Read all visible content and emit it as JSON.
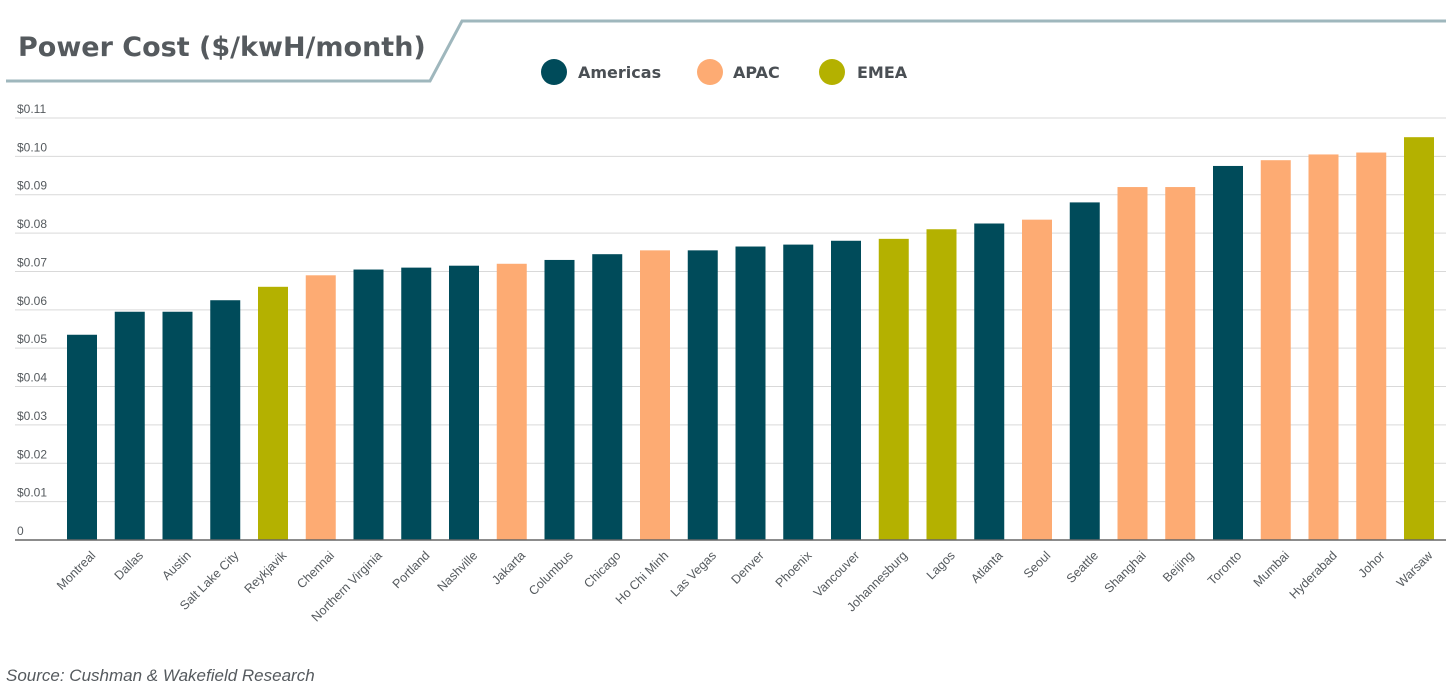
{
  "chart_data": {
    "type": "bar",
    "title": "Power Cost ($/kwH/month)",
    "xlabel": "",
    "ylabel": "",
    "ylim": [
      0,
      0.11
    ],
    "yticks": [
      0,
      0.01,
      0.02,
      0.03,
      0.04,
      0.05,
      0.06,
      0.07,
      0.08,
      0.09,
      0.1,
      0.11
    ],
    "ytick_labels": [
      "0",
      "$0.01",
      "$0.02",
      "$0.03",
      "$0.04",
      "$0.05",
      "$0.06",
      "$0.07",
      "$0.08",
      "$0.09",
      "$0.10",
      "$0.11"
    ],
    "legend": {
      "position": "top",
      "entries": [
        {
          "name": "Americas",
          "color": "#004b5a"
        },
        {
          "name": "APAC",
          "color": "#fdab73"
        },
        {
          "name": "EMEA",
          "color": "#b4b100"
        }
      ]
    },
    "categories": [
      "Montreal",
      "Dallas",
      "Austin",
      "Salt Lake City",
      "Reykjavik",
      "Chennai",
      "Northern Virginia",
      "Portland",
      "Nashville",
      "Jakarta",
      "Columbus",
      "Chicago",
      "Ho Chi Minh",
      "Las Vegas",
      "Denver",
      "Phoenix",
      "Vancouver",
      "Johannesburg",
      "Lagos",
      "Atlanta",
      "Seoul",
      "Seattle",
      "Shanghai",
      "Beijing",
      "Toronto",
      "Mumbai",
      "Hyderabad",
      "Johor",
      "Warsaw"
    ],
    "regions": [
      "Americas",
      "Americas",
      "Americas",
      "Americas",
      "EMEA",
      "APAC",
      "Americas",
      "Americas",
      "Americas",
      "APAC",
      "Americas",
      "Americas",
      "APAC",
      "Americas",
      "Americas",
      "Americas",
      "Americas",
      "EMEA",
      "EMEA",
      "Americas",
      "APAC",
      "Americas",
      "APAC",
      "APAC",
      "Americas",
      "APAC",
      "APAC",
      "APAC",
      "EMEA"
    ],
    "values": [
      0.0535,
      0.0595,
      0.0595,
      0.0625,
      0.066,
      0.069,
      0.0705,
      0.071,
      0.0715,
      0.072,
      0.073,
      0.0745,
      0.0755,
      0.0755,
      0.0765,
      0.077,
      0.078,
      0.0785,
      0.081,
      0.0825,
      0.0835,
      0.088,
      0.092,
      0.092,
      0.0975,
      0.099,
      0.1005,
      0.101,
      0.105
    ]
  },
  "source": "Source: Cushman & Wakefield Research"
}
